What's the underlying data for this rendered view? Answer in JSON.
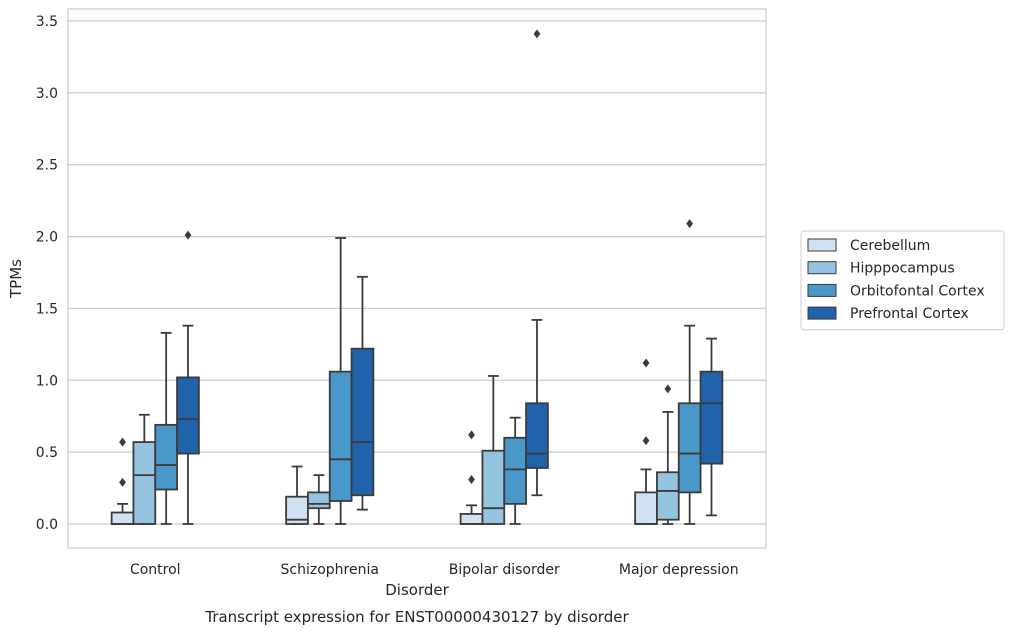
{
  "chart_data": {
    "type": "box",
    "caption": "Transcript expression for ENST00000430127 by disorder",
    "xlabel": "Disorder",
    "ylabel": "TPMs",
    "ylim": [
      -0.17,
      3.6
    ],
    "yticks": [
      "0.0",
      "0.5",
      "1.0",
      "1.5",
      "2.0",
      "2.5",
      "3.0",
      "3.5"
    ],
    "ytick_values": [
      0,
      0.5,
      1.0,
      1.5,
      2.0,
      2.5,
      3.0,
      3.5
    ],
    "categories": [
      "Control",
      "Schizophrenia",
      "Bipolar disorder",
      "Major depression"
    ],
    "grid": "horizontal",
    "legend_position": "right",
    "series": [
      {
        "name": "Cerebellum",
        "color": "#d0e1f2",
        "boxes": [
          {
            "whislo": 0.0,
            "q1": 0.0,
            "med": 0.0,
            "q3": 0.08,
            "whishi": 0.14,
            "fliers": [
              0.29,
              0.57
            ]
          },
          {
            "whislo": 0.0,
            "q1": 0.0,
            "med": 0.03,
            "q3": 0.19,
            "whishi": 0.4,
            "fliers": []
          },
          {
            "whislo": 0.0,
            "q1": 0.0,
            "med": 0.0,
            "q3": 0.07,
            "whishi": 0.13,
            "fliers": [
              0.31,
              0.62
            ]
          },
          {
            "whislo": 0.0,
            "q1": 0.0,
            "med": 0.0,
            "q3": 0.22,
            "whishi": 0.38,
            "fliers": [
              0.58,
              1.12
            ]
          }
        ]
      },
      {
        "name": "Hipppocampus",
        "color": "#94c4df",
        "boxes": [
          {
            "whislo": 0.0,
            "q1": 0.0,
            "med": 0.34,
            "q3": 0.57,
            "whishi": 0.76,
            "fliers": []
          },
          {
            "whislo": 0.0,
            "q1": 0.11,
            "med": 0.14,
            "q3": 0.22,
            "whishi": 0.34,
            "fliers": []
          },
          {
            "whislo": 0.0,
            "q1": 0.0,
            "med": 0.11,
            "q3": 0.51,
            "whishi": 1.03,
            "fliers": []
          },
          {
            "whislo": 0.0,
            "q1": 0.03,
            "med": 0.23,
            "q3": 0.36,
            "whishi": 0.78,
            "fliers": [
              0.94
            ]
          }
        ]
      },
      {
        "name": "Orbitofontal Cortex",
        "color": "#4a98c9",
        "boxes": [
          {
            "whislo": 0.0,
            "q1": 0.24,
            "med": 0.41,
            "q3": 0.69,
            "whishi": 1.33,
            "fliers": []
          },
          {
            "whislo": 0.0,
            "q1": 0.16,
            "med": 0.45,
            "q3": 1.06,
            "whishi": 1.99,
            "fliers": []
          },
          {
            "whislo": 0.0,
            "q1": 0.14,
            "med": 0.38,
            "q3": 0.6,
            "whishi": 0.74,
            "fliers": []
          },
          {
            "whislo": 0.0,
            "q1": 0.22,
            "med": 0.49,
            "q3": 0.84,
            "whishi": 1.38,
            "fliers": [
              2.09
            ]
          }
        ]
      },
      {
        "name": "Prefrontal Cortex",
        "color": "#2163aa",
        "boxes": [
          {
            "whislo": 0.0,
            "q1": 0.49,
            "med": 0.73,
            "q3": 1.02,
            "whishi": 1.38,
            "fliers": [
              2.01
            ]
          },
          {
            "whislo": 0.1,
            "q1": 0.2,
            "med": 0.57,
            "q3": 1.22,
            "whishi": 1.72,
            "fliers": []
          },
          {
            "whislo": 0.2,
            "q1": 0.39,
            "med": 0.49,
            "q3": 0.84,
            "whishi": 1.42,
            "fliers": [
              3.41
            ]
          },
          {
            "whislo": 0.06,
            "q1": 0.42,
            "med": 0.84,
            "q3": 1.06,
            "whishi": 1.29,
            "fliers": []
          }
        ]
      }
    ]
  }
}
